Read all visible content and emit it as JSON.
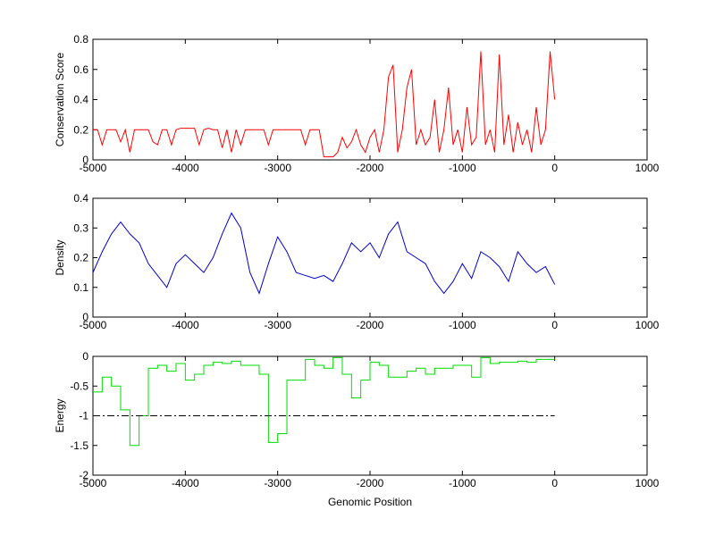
{
  "chart_data": [
    {
      "type": "line",
      "ylabel": "Conservation Score",
      "color": "#ff0000",
      "xlim": [
        -5000,
        1000
      ],
      "xticks": [
        -5000,
        -4000,
        -3000,
        -2000,
        -1000,
        0,
        1000
      ],
      "ylim": [
        0,
        0.8
      ],
      "yticks": [
        0,
        0.2,
        0.4,
        0.6,
        0.8
      ],
      "x": [
        -5000,
        -4950,
        -4900,
        -4850,
        -4800,
        -4750,
        -4700,
        -4650,
        -4600,
        -4550,
        -4500,
        -4450,
        -4400,
        -4350,
        -4300,
        -4250,
        -4200,
        -4150,
        -4100,
        -4050,
        -4000,
        -3950,
        -3900,
        -3850,
        -3800,
        -3750,
        -3700,
        -3650,
        -3600,
        -3550,
        -3500,
        -3450,
        -3400,
        -3350,
        -3300,
        -3250,
        -3200,
        -3150,
        -3100,
        -3050,
        -3000,
        -2950,
        -2900,
        -2850,
        -2800,
        -2750,
        -2700,
        -2650,
        -2600,
        -2550,
        -2500,
        -2450,
        -2400,
        -2350,
        -2300,
        -2250,
        -2200,
        -2150,
        -2100,
        -2050,
        -2000,
        -1950,
        -1900,
        -1850,
        -1800,
        -1750,
        -1700,
        -1650,
        -1600,
        -1550,
        -1500,
        -1450,
        -1400,
        -1350,
        -1300,
        -1250,
        -1200,
        -1150,
        -1100,
        -1050,
        -1000,
        -950,
        -900,
        -850,
        -800,
        -750,
        -700,
        -650,
        -600,
        -550,
        -500,
        -450,
        -400,
        -350,
        -300,
        -250,
        -200,
        -150,
        -100,
        -50,
        0
      ],
      "values": [
        0.2,
        0.2,
        0.1,
        0.2,
        0.2,
        0.2,
        0.12,
        0.2,
        0.05,
        0.2,
        0.2,
        0.2,
        0.2,
        0.12,
        0.1,
        0.2,
        0.2,
        0.1,
        0.2,
        0.21,
        0.21,
        0.21,
        0.21,
        0.1,
        0.2,
        0.21,
        0.2,
        0.2,
        0.08,
        0.2,
        0.05,
        0.2,
        0.1,
        0.2,
        0.2,
        0.2,
        0.2,
        0.2,
        0.1,
        0.2,
        0.2,
        0.2,
        0.2,
        0.2,
        0.2,
        0.2,
        0.1,
        0.2,
        0.2,
        0.2,
        0.02,
        0.02,
        0.02,
        0.05,
        0.15,
        0.08,
        0.12,
        0.2,
        0.1,
        0.05,
        0.15,
        0.2,
        0.05,
        0.2,
        0.55,
        0.63,
        0.05,
        0.2,
        0.48,
        0.6,
        0.1,
        0.2,
        0.1,
        0.15,
        0.4,
        0.05,
        0.2,
        0.48,
        0.1,
        0.2,
        0.05,
        0.35,
        0.1,
        0.15,
        0.72,
        0.1,
        0.2,
        0.05,
        0.7,
        0.1,
        0.3,
        0.05,
        0.25,
        0.1,
        0.2,
        0.05,
        0.35,
        0.1,
        0.2,
        0.72,
        0.4
      ]
    },
    {
      "type": "line",
      "ylabel": "Density",
      "color": "#0000cc",
      "xlim": [
        -5000,
        1000
      ],
      "xticks": [
        -5000,
        -4000,
        -3000,
        -2000,
        -1000,
        0,
        1000
      ],
      "ylim": [
        0,
        0.4
      ],
      "yticks": [
        0,
        0.1,
        0.2,
        0.3,
        0.4
      ],
      "x": [
        -5000,
        -4900,
        -4800,
        -4700,
        -4600,
        -4500,
        -4400,
        -4300,
        -4200,
        -4100,
        -4000,
        -3900,
        -3800,
        -3700,
        -3600,
        -3500,
        -3400,
        -3300,
        -3200,
        -3100,
        -3000,
        -2900,
        -2800,
        -2700,
        -2600,
        -2500,
        -2400,
        -2300,
        -2200,
        -2100,
        -2000,
        -1900,
        -1800,
        -1700,
        -1600,
        -1500,
        -1400,
        -1300,
        -1200,
        -1100,
        -1000,
        -900,
        -800,
        -700,
        -600,
        -500,
        -400,
        -300,
        -200,
        -100,
        0
      ],
      "values": [
        0.15,
        0.22,
        0.28,
        0.32,
        0.28,
        0.25,
        0.18,
        0.14,
        0.1,
        0.18,
        0.21,
        0.18,
        0.15,
        0.2,
        0.28,
        0.35,
        0.3,
        0.15,
        0.08,
        0.18,
        0.27,
        0.22,
        0.15,
        0.14,
        0.13,
        0.14,
        0.12,
        0.18,
        0.25,
        0.22,
        0.25,
        0.2,
        0.28,
        0.32,
        0.22,
        0.2,
        0.18,
        0.12,
        0.08,
        0.12,
        0.18,
        0.13,
        0.22,
        0.2,
        0.17,
        0.12,
        0.22,
        0.18,
        0.15,
        0.17,
        0.11
      ]
    },
    {
      "type": "step",
      "ylabel": "Energy",
      "xlabel": "Genomic Position",
      "color": "#00dd00",
      "xlim": [
        -5000,
        1000
      ],
      "xticks": [
        -5000,
        -4000,
        -3000,
        -2000,
        -1000,
        0,
        1000
      ],
      "ylim": [
        -2,
        0
      ],
      "yticks": [
        -2,
        -1.5,
        -1,
        -0.5,
        0
      ],
      "x": [
        -5000,
        -4900,
        -4800,
        -4700,
        -4600,
        -4500,
        -4400,
        -4300,
        -4200,
        -4100,
        -4000,
        -3900,
        -3800,
        -3700,
        -3600,
        -3500,
        -3400,
        -3300,
        -3200,
        -3100,
        -3000,
        -2900,
        -2800,
        -2700,
        -2600,
        -2500,
        -2400,
        -2300,
        -2200,
        -2100,
        -2000,
        -1900,
        -1800,
        -1700,
        -1600,
        -1500,
        -1400,
        -1300,
        -1200,
        -1100,
        -1000,
        -900,
        -800,
        -700,
        -600,
        -500,
        -400,
        -300,
        -200,
        -100,
        0
      ],
      "values": [
        -0.6,
        -0.35,
        -0.5,
        -0.9,
        -1.5,
        -1.0,
        -0.2,
        -0.15,
        -0.25,
        -0.12,
        -0.4,
        -0.3,
        -0.15,
        -0.1,
        -0.12,
        -0.08,
        -0.15,
        -0.15,
        -0.3,
        -1.45,
        -1.3,
        -0.4,
        -0.4,
        -0.05,
        -0.15,
        -0.2,
        -0.02,
        -0.3,
        -0.7,
        -0.4,
        -0.1,
        -0.15,
        -0.35,
        -0.35,
        -0.25,
        -0.2,
        -0.3,
        -0.2,
        -0.2,
        -0.15,
        -0.15,
        -0.35,
        -0.02,
        -0.12,
        -0.1,
        -0.1,
        -0.08,
        -0.1,
        -0.05,
        -0.05,
        -0.05
      ],
      "reference_line": {
        "value": -1,
        "x": [
          -5000,
          0
        ],
        "color": "#000000",
        "style": "dashdot"
      }
    }
  ]
}
